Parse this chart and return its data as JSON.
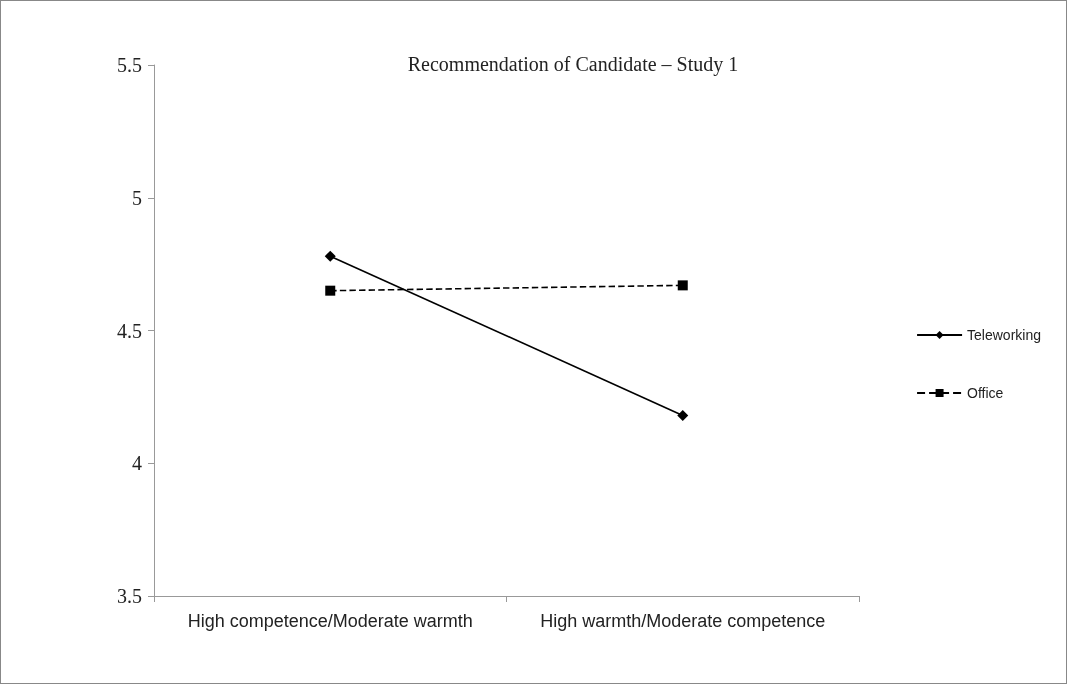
{
  "chart_data": {
    "type": "line",
    "title": "Recommendation of Candidate – Study 1",
    "categories": [
      "High competence/Moderate warmth",
      "High warmth/Moderate competence"
    ],
    "series": [
      {
        "name": "Teleworking",
        "color": "#000000",
        "values": [
          4.78,
          4.18
        ],
        "marker": "diamond",
        "line_style": "solid"
      },
      {
        "name": "Office",
        "color": "#000000",
        "values": [
          4.65,
          4.67
        ],
        "marker": "square",
        "line_style": "dashed"
      }
    ],
    "ylim": [
      3.5,
      5.5
    ],
    "yticks": [
      3.5,
      4,
      4.5,
      5,
      5.5
    ],
    "grid": false,
    "legend": "right"
  }
}
